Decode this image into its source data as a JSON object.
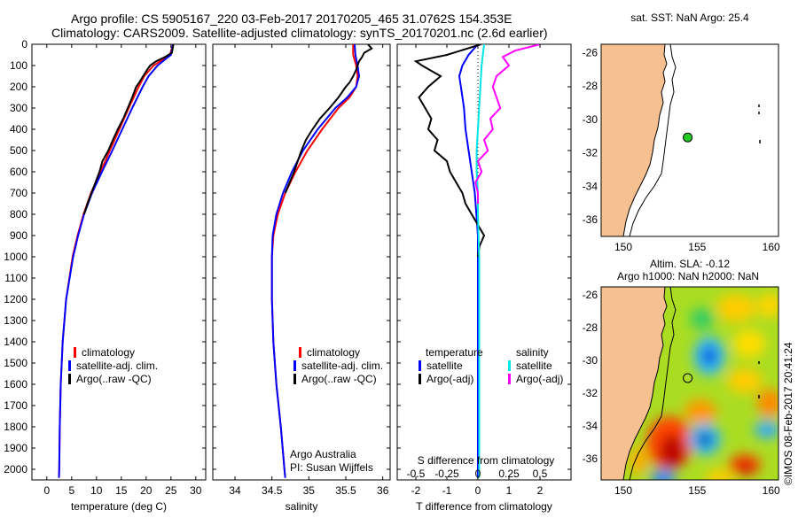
{
  "header": {
    "line1": "Argo profile: CS 5905167_220 03-Feb-2017 20170205_465 31.0762S 154.353E",
    "line2": "Climatology: CARS2009. Satellite-adjusted climatology: synTS_20170201.nc (2.6d earlier)"
  },
  "colors": {
    "climatology": "#ff0000",
    "satellite": "#0000ff",
    "argo": "#000000",
    "sal_satellite": "#00e5e5",
    "sal_argo": "#ff00ff",
    "land": "#f7c090",
    "sea": "#ffffff"
  },
  "chart_data": [
    {
      "type": "line",
      "id": "temperature",
      "xlabel": "temperature (deg C)",
      "ylabel": "",
      "xlim": [
        -3,
        32
      ],
      "ylim": [
        2050,
        0
      ],
      "xticks": [
        "0",
        "5",
        "10",
        "15",
        "20",
        "25",
        "30"
      ],
      "yticks": [
        "0",
        "100",
        "200",
        "300",
        "400",
        "500",
        "600",
        "700",
        "800",
        "900",
        "1000",
        "1100",
        "1200",
        "1300",
        "1400",
        "1500",
        "1600",
        "1700",
        "1800",
        "1900",
        "2000"
      ],
      "legend": [
        "climatology",
        "satellite-adj. clim.",
        "Argo(..raw -QC)"
      ],
      "series": [
        {
          "name": "climatology",
          "color": "#ff0000",
          "depth": [
            0,
            50,
            100,
            150,
            200,
            300,
            400,
            500,
            600,
            700,
            800,
            900,
            1000,
            1200,
            1400,
            1600,
            1800,
            2000,
            2040
          ],
          "values": [
            25.4,
            24.8,
            21.5,
            19.6,
            18.5,
            16.5,
            14.6,
            12.7,
            10.8,
            8.9,
            7.4,
            6.2,
            5.2,
            3.9,
            3.2,
            2.8,
            2.6,
            2.5,
            2.45
          ]
        },
        {
          "name": "satellite-adj. clim.",
          "color": "#0000ff",
          "depth": [
            0,
            50,
            100,
            150,
            200,
            300,
            400,
            500,
            600,
            700,
            800,
            900,
            1000,
            1200,
            1400,
            1600,
            1800,
            2000,
            2040
          ],
          "values": [
            25.4,
            25.0,
            22.3,
            20.5,
            19.3,
            17.2,
            15.2,
            13.2,
            11.1,
            9.1,
            7.5,
            6.3,
            5.3,
            3.9,
            3.2,
            2.8,
            2.6,
            2.5,
            2.45
          ]
        },
        {
          "name": "Argo(..raw -QC)",
          "color": "#000000",
          "depth": [
            0,
            40,
            60,
            80,
            100,
            120,
            150,
            180,
            200,
            250,
            300,
            350,
            400,
            450,
            500,
            550,
            600,
            650,
            700,
            750,
            800
          ],
          "values": [
            25.5,
            25.2,
            23.8,
            22.0,
            20.8,
            20.2,
            19.4,
            18.6,
            18.0,
            17.2,
            16.3,
            15.4,
            14.3,
            13.3,
            12.4,
            11.2,
            10.6,
            9.8,
            9.0,
            8.2,
            7.5
          ]
        }
      ]
    },
    {
      "type": "line",
      "id": "salinity",
      "xlabel": "salinity",
      "ylabel": "",
      "xlim": [
        33.7,
        36.1
      ],
      "ylim": [
        2050,
        0
      ],
      "xticks": [
        "34",
        "34.5",
        "35",
        "35.5",
        "36"
      ],
      "legend": [
        "climatology",
        "satellite-adj. clim.",
        "Argo(..raw -QC)"
      ],
      "credit": [
        "Argo Australia",
        "PI: Susan Wijffels"
      ],
      "series": [
        {
          "name": "climatology",
          "color": "#ff0000",
          "depth": [
            0,
            50,
            100,
            150,
            200,
            250,
            300,
            400,
            500,
            600,
            700,
            800,
            900,
            1000,
            1200,
            1400,
            1600,
            1800,
            2000,
            2040
          ],
          "values": [
            35.6,
            35.6,
            35.64,
            35.66,
            35.64,
            35.55,
            35.4,
            35.18,
            34.98,
            34.82,
            34.68,
            34.58,
            34.52,
            34.5,
            34.5,
            34.52,
            34.56,
            34.62,
            34.67,
            34.68
          ]
        },
        {
          "name": "satellite-adj. clim.",
          "color": "#0000ff",
          "depth": [
            0,
            50,
            100,
            150,
            200,
            250,
            300,
            400,
            500,
            600,
            700,
            800,
            900,
            1000,
            1200,
            1400,
            1600,
            1800,
            2000,
            2040
          ],
          "values": [
            35.62,
            35.63,
            35.66,
            35.68,
            35.64,
            35.52,
            35.36,
            35.12,
            34.92,
            34.77,
            34.65,
            34.56,
            34.51,
            34.5,
            34.5,
            34.52,
            34.56,
            34.62,
            34.67,
            34.68
          ]
        },
        {
          "name": "Argo(..raw -QC)",
          "color": "#000000",
          "depth": [
            0,
            20,
            40,
            60,
            80,
            100,
            120,
            150,
            180,
            200,
            250,
            300,
            350,
            400,
            450,
            500,
            550,
            600,
            650,
            700
          ],
          "values": [
            35.8,
            35.85,
            35.75,
            35.72,
            35.68,
            35.66,
            35.64,
            35.6,
            35.55,
            35.5,
            35.4,
            35.28,
            35.15,
            35.05,
            34.96,
            34.9,
            34.85,
            34.8,
            34.74,
            34.68
          ]
        }
      ]
    },
    {
      "type": "line",
      "id": "difference",
      "xlabel": "T difference from climatology",
      "xlabel_top": "S difference from climatology",
      "xlim": [
        -2.6,
        3.0
      ],
      "ylim": [
        2050,
        0
      ],
      "xticks": [
        "-2",
        "-1",
        "0",
        "1",
        "2"
      ],
      "xticks_top": [
        "-0.5",
        "-0.25",
        "0",
        "0.25",
        "0.5"
      ],
      "legend_temp_title": "temperature",
      "legend_sal_title": "salinity",
      "legend_temp": [
        "satellite",
        "Argo(-adj)"
      ],
      "legend_sal": [
        "satellite",
        "Argo(-adj)"
      ],
      "series": [
        {
          "name": "satellite",
          "color": "#0000ff",
          "depth": [
            0,
            50,
            100,
            150,
            200,
            300,
            400,
            500,
            600,
            700,
            800,
            900,
            1000,
            1200,
            1400,
            1600,
            1800,
            2000,
            2040
          ],
          "values": [
            0.0,
            -0.3,
            -0.5,
            -0.6,
            -0.55,
            -0.45,
            -0.4,
            -0.3,
            -0.2,
            -0.1,
            -0.05,
            0,
            0,
            0,
            0,
            0,
            0,
            0,
            0
          ]
        },
        {
          "name": "Argo(-adj)",
          "color": "#000000",
          "depth": [
            0,
            50,
            80,
            100,
            150,
            200,
            250,
            300,
            350,
            400,
            450,
            500,
            550,
            600,
            650,
            700,
            750,
            800,
            850,
            900,
            950,
            1000
          ],
          "values": [
            0.1,
            -1.0,
            -2.0,
            -1.8,
            -1.2,
            -1.6,
            -1.9,
            -1.7,
            -1.5,
            -1.6,
            -1.3,
            -1.4,
            -1.0,
            -0.9,
            -0.7,
            -0.5,
            -0.4,
            -0.2,
            0.0,
            0.2,
            0.05,
            0.0
          ]
        },
        {
          "name": "salinity satellite",
          "color": "#00e5e5",
          "depth": [
            0,
            50,
            100,
            200,
            300,
            400,
            500,
            600,
            700,
            800,
            1000,
            1200,
            1400,
            1600,
            1800,
            2000,
            2040
          ],
          "values": [
            0.05,
            0.04,
            0.03,
            0.02,
            0.01,
            0.0,
            -0.01,
            -0.01,
            0.0,
            0.0,
            0.01,
            0.01,
            0.01,
            0.01,
            0.01,
            0.01,
            0.01
          ]
        },
        {
          "name": "salinity Argo(-adj)",
          "color": "#ff00ff",
          "depth": [
            0,
            30,
            60,
            100,
            150,
            200,
            300,
            350,
            400,
            450,
            500,
            550,
            600,
            650,
            700,
            750
          ],
          "values": [
            0.5,
            0.3,
            0.2,
            0.25,
            0.15,
            0.12,
            0.18,
            0.1,
            0.12,
            0.05,
            0.08,
            0.0,
            0.03,
            -0.02,
            0.0,
            0.0
          ]
        }
      ]
    }
  ],
  "map_sst": {
    "title": "sat. SST: NaN Argo: 25.4",
    "xticks": [
      "150",
      "155",
      "160"
    ],
    "yticks": [
      "-26",
      "-28",
      "-30",
      "-32",
      "-34",
      "-36"
    ],
    "argo_lon": 154.353,
    "argo_lat": -31.0762
  },
  "map_sla": {
    "title1": "Altim. SLA: -0.12",
    "title2": "Argo h1000: NaN h2000: NaN",
    "xticks": [
      "150",
      "155",
      "160"
    ],
    "yticks": [
      "-26",
      "-28",
      "-30",
      "-32",
      "-34",
      "-36"
    ],
    "argo_lon": 154.353,
    "argo_lat": -31.0762
  },
  "watermark": "©IMOS 08-Feb-2017 20:41:24"
}
